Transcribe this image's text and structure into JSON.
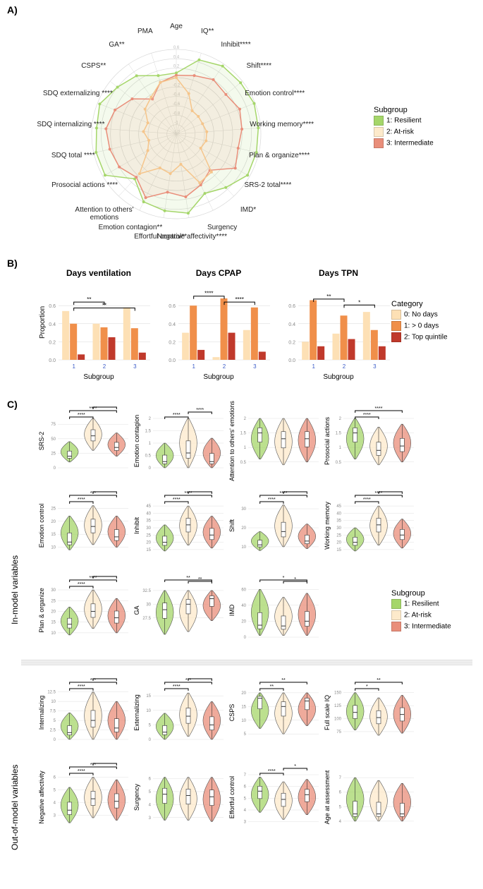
{
  "colors": {
    "resilient": "#a5d66a",
    "atrisk": "#fdeacb",
    "intermediate": "#e98e7a",
    "barCat0": "#fde0b5",
    "barCat1": "#f08f4a",
    "barCat2": "#c0392b",
    "grid": "#d8d8d8",
    "axis": "#888888",
    "text": "#222222"
  },
  "panelA": {
    "label": "A)",
    "radarLabels": [
      "Age",
      "IQ**",
      "Inhibit****",
      "Shift****",
      "Emotion control****",
      "Working memory****",
      "Plan & organize****",
      "SRS-2 total****",
      "IMD*",
      "Surgency",
      "Negative affectivity****",
      "Effortful control**",
      "Emotion\ncontagion**",
      "Attention to others' emotions",
      "Prosocial actions ****",
      "SDQ total ****",
      "SDQ internalizing ****",
      "SDQ externalizing ****",
      "CSPS**",
      "GA**",
      "PMA"
    ],
    "rings": [
      -1.2,
      -1.0,
      -0.8,
      -0.6,
      -0.4,
      -0.2,
      0,
      0.2,
      0.4,
      0.6
    ],
    "series": {
      "resilient": [
        0.1,
        0.45,
        0.55,
        0.55,
        0.58,
        0.55,
        0.55,
        0.55,
        0.35,
        0.2,
        0.5,
        0.45,
        0.4,
        0.1,
        0.55,
        0.55,
        0.5,
        0.55,
        0.4,
        0.3,
        0.1
      ],
      "atrisk": [
        0.0,
        -0.3,
        -0.6,
        -0.6,
        -0.6,
        -0.55,
        -0.55,
        -0.6,
        -0.1,
        -0.05,
        -0.55,
        -0.35,
        -0.4,
        -0.05,
        -0.5,
        -0.6,
        -0.5,
        -0.55,
        -0.35,
        -0.25,
        -0.05
      ],
      "intermediate": [
        0.05,
        0.1,
        0.2,
        0.15,
        0.25,
        0.2,
        0.15,
        0.25,
        -0.15,
        0.0,
        0.15,
        0.05,
        0.3,
        0.05,
        0.2,
        0.25,
        0.3,
        0.2,
        0.0,
        -0.3,
        -0.05
      ]
    },
    "legendTitle": "Subgroup",
    "legendItems": [
      {
        "color": "resilient",
        "label": "1: Resilient"
      },
      {
        "color": "atrisk",
        "label": "2: At-risk"
      },
      {
        "color": "intermediate",
        "label": "3: Intermediate"
      }
    ]
  },
  "panelB": {
    "label": "B)",
    "ylabel": "Proportion",
    "xlabel": "Subgroup",
    "yticks": [
      0.0,
      0.2,
      0.4,
      0.6
    ],
    "charts": [
      {
        "title": "Days ventilation",
        "data": [
          [
            0.54,
            0.4,
            0.06
          ],
          [
            0.4,
            0.36,
            0.25
          ],
          [
            0.58,
            0.35,
            0.08
          ]
        ],
        "sig": [
          {
            "a": 0,
            "b": 1,
            "t": "**",
            "h": 0.78
          },
          {
            "a": 0,
            "b": 2,
            "t": "**",
            "h": 0.7
          }
        ]
      },
      {
        "title": "Days CPAP",
        "data": [
          [
            0.3,
            0.6,
            0.11
          ],
          [
            0.03,
            0.68,
            0.3
          ],
          [
            0.33,
            0.58,
            0.09
          ]
        ],
        "sig": [
          {
            "a": 0,
            "b": 1,
            "t": "****",
            "h": 0.86
          },
          {
            "a": 1,
            "b": 2,
            "t": "****",
            "h": 0.78
          }
        ]
      },
      {
        "title": "Days TPN",
        "data": [
          [
            0.2,
            0.66,
            0.15
          ],
          [
            0.29,
            0.49,
            0.23
          ],
          [
            0.53,
            0.33,
            0.15
          ]
        ],
        "sig": [
          {
            "a": 0,
            "b": 1,
            "t": "**",
            "h": 0.82
          },
          {
            "a": 1,
            "b": 2,
            "t": "*",
            "h": 0.74
          }
        ]
      }
    ],
    "legendTitle": "Category",
    "legendItems": [
      {
        "color": "barCat0",
        "label": "0: No days"
      },
      {
        "color": "barCat1",
        "label": "1: > 0 days"
      },
      {
        "color": "barCat2",
        "label": "2: Top quintile"
      }
    ]
  },
  "panelC": {
    "label": "C)",
    "sideLabels": [
      "In-model variables",
      "Out-of-model variables"
    ],
    "legendTitle": "Subgroup",
    "legendItems": [
      {
        "color": "resilient",
        "label": "1: Resilient"
      },
      {
        "color": "atrisk",
        "label": "2: At-risk"
      },
      {
        "color": "intermediate",
        "label": "3: Intermediate"
      }
    ],
    "inModel": [
      {
        "name": "SRS-2",
        "yticks": [
          0,
          25,
          50,
          75
        ],
        "ymin": 0,
        "ymax": 85,
        "groups": [
          {
            "m": 20,
            "lo": 10,
            "hi": 45
          },
          {
            "m": 55,
            "lo": 30,
            "hi": 85
          },
          {
            "m": 35,
            "lo": 20,
            "hi": 60
          }
        ],
        "sig": [
          {
            "a": 0,
            "b": 1,
            "t": "****"
          },
          {
            "a": 0,
            "b": 2,
            "t": "****",
            "h2": 1
          },
          {
            "a": 1,
            "b": 2,
            "t": "****",
            "h2": 0
          }
        ]
      },
      {
        "name": "Emotion contagion",
        "yticks": [
          0.0,
          0.5,
          1.0,
          1.5,
          2.0
        ],
        "ymin": 0,
        "ymax": 2,
        "groups": [
          {
            "m": 0.25,
            "lo": 0,
            "hi": 1.0
          },
          {
            "m": 0.6,
            "lo": 0,
            "hi": 2.0
          },
          {
            "m": 0.25,
            "lo": 0,
            "hi": 1.2
          }
        ],
        "sig": [
          {
            "a": 0,
            "b": 1,
            "t": "****"
          },
          {
            "a": 1,
            "b": 2,
            "t": "****"
          }
        ]
      },
      {
        "name": "Attention to others' emotions",
        "yticks": [
          0.5,
          1.0,
          1.5,
          2.0
        ],
        "ymin": 0.3,
        "ymax": 2,
        "groups": [
          {
            "m": 1.5,
            "lo": 0.6,
            "hi": 2.0
          },
          {
            "m": 1.3,
            "lo": 0.4,
            "hi": 2.0
          },
          {
            "m": 1.3,
            "lo": 0.5,
            "hi": 2.0
          }
        ],
        "sig": []
      },
      {
        "name": "Prosocial actions",
        "yticks": [
          0.5,
          1.0,
          1.5,
          2.0
        ],
        "ymin": 0.3,
        "ymax": 2,
        "groups": [
          {
            "m": 1.5,
            "lo": 0.6,
            "hi": 2.0
          },
          {
            "m": 0.9,
            "lo": 0.4,
            "hi": 1.7
          },
          {
            "m": 1.05,
            "lo": 0.5,
            "hi": 1.8
          }
        ],
        "sig": [
          {
            "a": 0,
            "b": 1,
            "t": "****"
          },
          {
            "a": 0,
            "b": 2,
            "t": "****",
            "h2": 1
          }
        ]
      },
      {
        "name": "Emotion control",
        "yticks": [
          10,
          15,
          20,
          25
        ],
        "ymin": 8,
        "ymax": 27,
        "groups": [
          {
            "m": 12,
            "lo": 9,
            "hi": 22
          },
          {
            "m": 18,
            "lo": 11,
            "hi": 26
          },
          {
            "m": 14,
            "lo": 10,
            "hi": 22
          }
        ],
        "sig": [
          {
            "a": 0,
            "b": 1,
            "t": "****"
          },
          {
            "a": 0,
            "b": 2,
            "t": "***",
            "h2": 1
          },
          {
            "a": 1,
            "b": 2,
            "t": "****"
          }
        ]
      },
      {
        "name": "Inhibit",
        "yticks": [
          15,
          20,
          25,
          30,
          35,
          40,
          45
        ],
        "ymin": 13,
        "ymax": 47,
        "groups": [
          {
            "m": 20,
            "lo": 14,
            "hi": 32
          },
          {
            "m": 32,
            "lo": 18,
            "hi": 45
          },
          {
            "m": 25,
            "lo": 16,
            "hi": 38
          }
        ],
        "sig": [
          {
            "a": 0,
            "b": 1,
            "t": "****"
          },
          {
            "a": 0,
            "b": 2,
            "t": "****",
            "h2": 1
          },
          {
            "a": 1,
            "b": 2,
            "t": "****"
          }
        ]
      },
      {
        "name": "Shift",
        "yticks": [
          10,
          20,
          30
        ],
        "ymin": 7,
        "ymax": 33,
        "groups": [
          {
            "m": 11,
            "lo": 8,
            "hi": 18
          },
          {
            "m": 18,
            "lo": 10,
            "hi": 32
          },
          {
            "m": 13,
            "lo": 9,
            "hi": 22
          }
        ],
        "sig": [
          {
            "a": 0,
            "b": 1,
            "t": "****"
          },
          {
            "a": 0,
            "b": 2,
            "t": "****",
            "h2": 1
          },
          {
            "a": 1,
            "b": 2,
            "t": "****"
          }
        ]
      },
      {
        "name": "Working memory",
        "yticks": [
          15,
          20,
          25,
          30,
          35,
          40,
          45
        ],
        "ymin": 13,
        "ymax": 47,
        "groups": [
          {
            "m": 20,
            "lo": 14,
            "hi": 30
          },
          {
            "m": 32,
            "lo": 18,
            "hi": 45
          },
          {
            "m": 25,
            "lo": 16,
            "hi": 36
          }
        ],
        "sig": [
          {
            "a": 0,
            "b": 1,
            "t": "****"
          },
          {
            "a": 0,
            "b": 2,
            "t": "****",
            "h2": 1
          },
          {
            "a": 1,
            "b": 2,
            "t": "***"
          }
        ]
      },
      {
        "name": "Plan & organize",
        "yticks": [
          10,
          15,
          20,
          25,
          30
        ],
        "ymin": 8,
        "ymax": 31,
        "groups": [
          {
            "m": 14,
            "lo": 9,
            "hi": 22
          },
          {
            "m": 20,
            "lo": 12,
            "hi": 30
          },
          {
            "m": 17,
            "lo": 10,
            "hi": 26
          }
        ],
        "sig": [
          {
            "a": 0,
            "b": 1,
            "t": "****"
          },
          {
            "a": 0,
            "b": 2,
            "t": "****",
            "h2": 1
          },
          {
            "a": 1,
            "b": 2,
            "t": "***"
          }
        ]
      },
      {
        "name": "GA",
        "yticks": [
          27.5,
          30.0,
          32.5
        ],
        "ymin": 24,
        "ymax": 33,
        "groups": [
          {
            "m": 29,
            "lo": 24.5,
            "hi": 32.5
          },
          {
            "m": 30,
            "lo": 25,
            "hi": 32.5
          },
          {
            "m": 31,
            "lo": 27,
            "hi": 32.5
          }
        ],
        "sig": [
          {
            "a": 0,
            "b": 2,
            "t": "**",
            "h2": 1
          },
          {
            "a": 1,
            "b": 2,
            "t": "**"
          }
        ]
      },
      {
        "name": "IMD",
        "yticks": [
          0,
          20,
          40,
          60
        ],
        "ymin": 0,
        "ymax": 62,
        "groups": [
          {
            "m": 15,
            "lo": 2,
            "hi": 60
          },
          {
            "m": 14,
            "lo": 2,
            "hi": 50
          },
          {
            "m": 20,
            "lo": 2,
            "hi": 55
          }
        ],
        "sig": [
          {
            "a": 0,
            "b": 2,
            "t": "*",
            "h2": 1
          },
          {
            "a": 1,
            "b": 2,
            "t": "*"
          }
        ]
      }
    ],
    "outModel": [
      {
        "name": "Internalizing",
        "yticks": [
          0,
          2.5,
          5,
          7.5,
          10,
          12.5
        ],
        "ymin": 0,
        "ymax": 13,
        "groups": [
          {
            "m": 1.8,
            "lo": 0,
            "hi": 7
          },
          {
            "m": 5,
            "lo": 0,
            "hi": 12.5
          },
          {
            "m": 3,
            "lo": 0,
            "hi": 10
          }
        ],
        "sig": [
          {
            "a": 0,
            "b": 1,
            "t": "****"
          },
          {
            "a": 0,
            "b": 2,
            "t": "***",
            "h2": 1
          },
          {
            "a": 1,
            "b": 2,
            "t": "***"
          }
        ]
      },
      {
        "name": "Externalizing",
        "yticks": [
          0,
          5,
          10,
          15
        ],
        "ymin": 0,
        "ymax": 17,
        "groups": [
          {
            "m": 2.5,
            "lo": 0,
            "hi": 9
          },
          {
            "m": 8,
            "lo": 1,
            "hi": 16
          },
          {
            "m": 5,
            "lo": 0,
            "hi": 13
          }
        ],
        "sig": [
          {
            "a": 0,
            "b": 1,
            "t": "****"
          },
          {
            "a": 0,
            "b": 2,
            "t": "***",
            "h2": 1
          },
          {
            "a": 1,
            "b": 2,
            "t": "***"
          }
        ]
      },
      {
        "name": "CSPS",
        "yticks": [
          5,
          10,
          15,
          20
        ],
        "ymin": 3,
        "ymax": 21,
        "groups": [
          {
            "m": 18,
            "lo": 7,
            "hi": 20
          },
          {
            "m": 15,
            "lo": 5,
            "hi": 20
          },
          {
            "m": 17,
            "lo": 8,
            "hi": 20
          }
        ],
        "sig": [
          {
            "a": 0,
            "b": 1,
            "t": "**"
          },
          {
            "a": 0,
            "b": 2,
            "t": "**",
            "h2": 1
          }
        ]
      },
      {
        "name": "Full scale IQ",
        "yticks": [
          75,
          100,
          125,
          150
        ],
        "ymin": 60,
        "ymax": 155,
        "groups": [
          {
            "m": 112,
            "lo": 78,
            "hi": 150
          },
          {
            "m": 102,
            "lo": 68,
            "hi": 140
          },
          {
            "m": 108,
            "lo": 72,
            "hi": 145
          }
        ],
        "sig": [
          {
            "a": 0,
            "b": 1,
            "t": "*"
          },
          {
            "a": 0,
            "b": 2,
            "t": "**",
            "h2": 1
          }
        ]
      },
      {
        "name": "Negative affectivity",
        "yticks": [
          3,
          4,
          5,
          6
        ],
        "ymin": 2.3,
        "ymax": 6.2,
        "groups": [
          {
            "m": 3.4,
            "lo": 2.4,
            "hi": 5.2
          },
          {
            "m": 4.3,
            "lo": 2.8,
            "hi": 6.0
          },
          {
            "m": 4.1,
            "lo": 2.6,
            "hi": 5.8
          }
        ],
        "sig": [
          {
            "a": 0,
            "b": 1,
            "t": "****"
          },
          {
            "a": 0,
            "b": 2,
            "t": "***",
            "h2": 1
          },
          {
            "a": 1,
            "b": 2,
            "t": "*"
          }
        ]
      },
      {
        "name": "Surgency",
        "yticks": [
          3,
          4,
          5,
          6
        ],
        "ymin": 2.5,
        "ymax": 6.3,
        "groups": [
          {
            "m": 4.8,
            "lo": 2.8,
            "hi": 6.1
          },
          {
            "m": 4.7,
            "lo": 2.8,
            "hi": 6.1
          },
          {
            "m": 4.6,
            "lo": 2.7,
            "hi": 6.1
          }
        ],
        "sig": []
      },
      {
        "name": "Effortful control",
        "yticks": [
          3,
          4,
          5,
          6,
          7
        ],
        "ymin": 2.8,
        "ymax": 7,
        "groups": [
          {
            "m": 5.6,
            "lo": 3.8,
            "hi": 6.8
          },
          {
            "m": 4.9,
            "lo": 3.2,
            "hi": 6.4
          },
          {
            "m": 5.3,
            "lo": 3.6,
            "hi": 6.6
          }
        ],
        "sig": [
          {
            "a": 0,
            "b": 1,
            "t": "****"
          },
          {
            "a": 1,
            "b": 2,
            "t": "*"
          }
        ]
      },
      {
        "name": "Age at assessment",
        "yticks": [
          4,
          5,
          6,
          7
        ],
        "ymin": 3.8,
        "ymax": 7.2,
        "groups": [
          {
            "m": 4.5,
            "lo": 4.0,
            "hi": 7.0
          },
          {
            "m": 4.5,
            "lo": 4.0,
            "hi": 6.8
          },
          {
            "m": 4.5,
            "lo": 4.0,
            "hi": 6.6
          }
        ],
        "sig": []
      }
    ]
  }
}
